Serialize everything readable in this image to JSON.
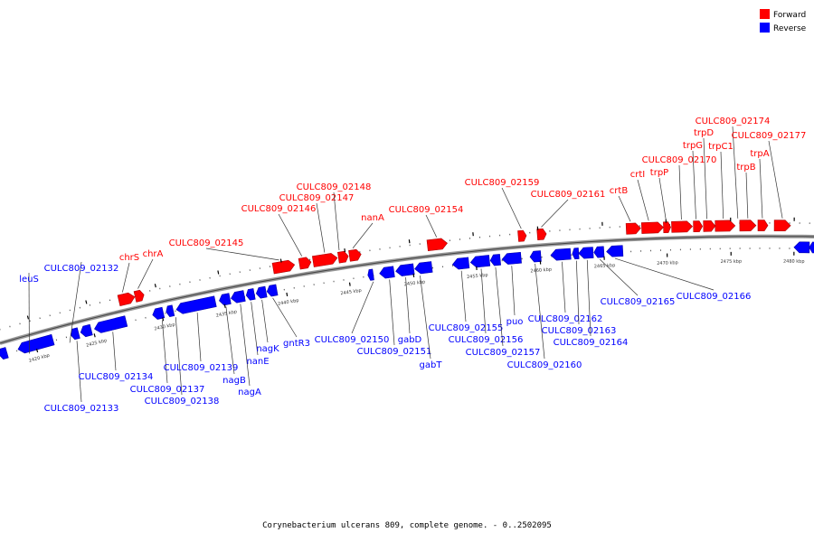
{
  "caption": "Corynebacterium ulcerans 809, complete genome. - 0..2502095",
  "legend": [
    {
      "label": "Forward",
      "color": "#ff0000"
    },
    {
      "label": "Reverse",
      "color": "#0000ff"
    }
  ],
  "colors": {
    "forward": "#ff0000",
    "reverse": "#0000ff",
    "backbone": "#888888",
    "leader": "#333333"
  },
  "tick_labels": [
    "2420 kbp",
    "2425 kbp",
    "2430 kbp",
    "2435 kbp",
    "2440 kbp",
    "2445 kbp",
    "2450 kbp",
    "2455 kbp",
    "2460 kbp",
    "2465 kbp",
    "2470 kbp",
    "2475 kbp",
    "2480 kbp"
  ],
  "forward_labels": [
    "chrS",
    "chrA",
    "CULC809_02145",
    "CULC809_02146",
    "CULC809_02147",
    "CULC809_02148",
    "nanA",
    "CULC809_02154",
    "CULC809_02159",
    "CULC809_02161",
    "crtB",
    "crtI",
    "trpP",
    "CULC809_02170",
    "trpG",
    "trpD",
    "trpC1",
    "CULC809_02174",
    "trpB",
    "trpA",
    "CULC809_02177"
  ],
  "reverse_labels": [
    "leuS",
    "CULC809_02132",
    "CULC809_02133",
    "CULC809_02134",
    "CULC809_02137",
    "CULC809_02138",
    "CULC809_02139",
    "nagB",
    "nagA",
    "nanE",
    "nagK",
    "gntR3",
    "CULC809_02150",
    "CULC809_02151",
    "gabD",
    "gabT",
    "CULC809_02155",
    "CULC809_02156",
    "puo",
    "CULC809_02157",
    "CULC809_02160",
    "CULC809_02162",
    "CULC809_02163",
    "CULC809_02164",
    "CULC809_02165",
    "CULC809_02166"
  ]
}
